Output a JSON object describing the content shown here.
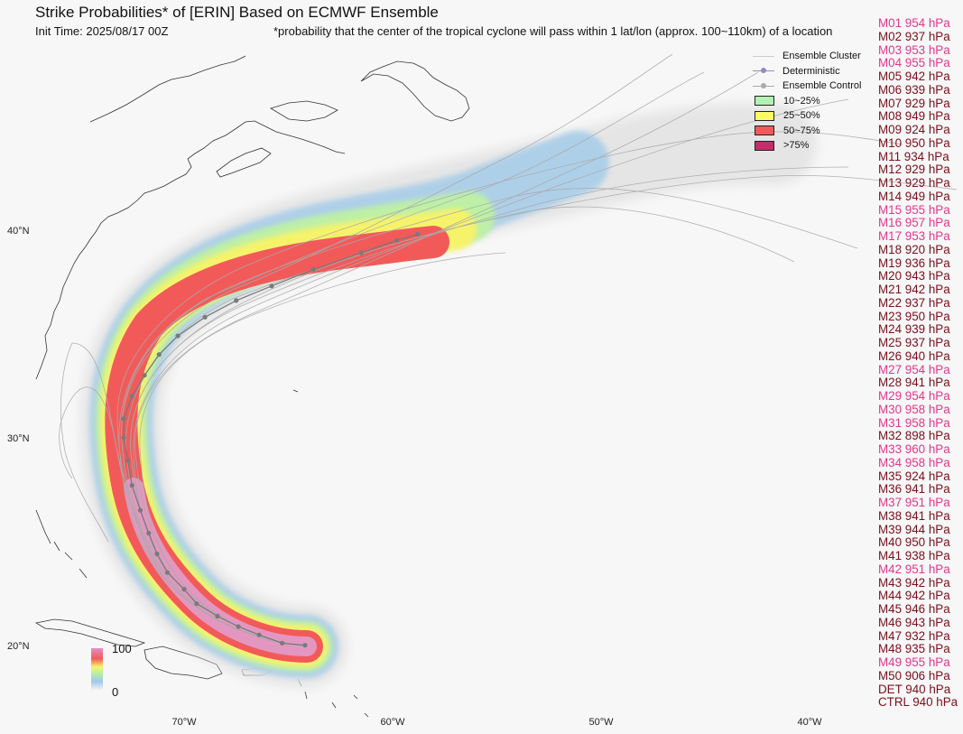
{
  "title": "Strike Probabilities* of [ERIN] Based on ECMWF Ensemble",
  "init_time": "Init Time: 2025/08/17 00Z",
  "footnote": "*probability that the center of the tropical cyclone will pass within 1 lat/lon (approx. 100~110km) of a location",
  "legend": {
    "items": [
      {
        "label": "Ensemble Cluster",
        "kind": "line",
        "color": "#cccccc"
      },
      {
        "label": "Deterministic",
        "kind": "line-dot",
        "color": "#8c8cc4"
      },
      {
        "label": "Ensemble Control",
        "kind": "line-dot",
        "color": "#aaaaaa"
      },
      {
        "label": "10~25%",
        "kind": "box",
        "color": "#b3f2b3"
      },
      {
        "label": "25~50%",
        "kind": "box",
        "color": "#fafa66"
      },
      {
        "label": "50~75%",
        "kind": "box",
        "color": "#f25a5a"
      },
      {
        "label": ">75%",
        "kind": "box",
        "color": "#c22f6b"
      }
    ]
  },
  "colorbar": {
    "max_label": "100",
    "min_label": "0"
  },
  "members": [
    {
      "label": "M01 954 hPa",
      "color": "#e0388a"
    },
    {
      "label": "M02 937 hPa",
      "color": "#7a0f1c"
    },
    {
      "label": "M03 953 hPa",
      "color": "#e0388a"
    },
    {
      "label": "M04 955 hPa",
      "color": "#e0388a"
    },
    {
      "label": "M05 942 hPa",
      "color": "#7a0f1c"
    },
    {
      "label": "M06 939 hPa",
      "color": "#7a0f1c"
    },
    {
      "label": "M07 929 hPa",
      "color": "#7a0f1c"
    },
    {
      "label": "M08 949 hPa",
      "color": "#7a0f1c"
    },
    {
      "label": "M09 924 hPa",
      "color": "#7a0f1c"
    },
    {
      "label": "M10 950 hPa",
      "color": "#7a0f1c"
    },
    {
      "label": "M11 934 hPa",
      "color": "#7a0f1c"
    },
    {
      "label": "M12 929 hPa",
      "color": "#7a0f1c"
    },
    {
      "label": "M13 929 hPa",
      "color": "#7a0f1c"
    },
    {
      "label": "M14 949 hPa",
      "color": "#7a0f1c"
    },
    {
      "label": "M15 955 hPa",
      "color": "#e0388a"
    },
    {
      "label": "M16 957 hPa",
      "color": "#e0388a"
    },
    {
      "label": "M17 953 hPa",
      "color": "#e0388a"
    },
    {
      "label": "M18 920 hPa",
      "color": "#7a0f1c"
    },
    {
      "label": "M19 936 hPa",
      "color": "#7a0f1c"
    },
    {
      "label": "M20 943 hPa",
      "color": "#7a0f1c"
    },
    {
      "label": "M21 942 hPa",
      "color": "#7a0f1c"
    },
    {
      "label": "M22 937 hPa",
      "color": "#7a0f1c"
    },
    {
      "label": "M23 950 hPa",
      "color": "#7a0f1c"
    },
    {
      "label": "M24 939 hPa",
      "color": "#7a0f1c"
    },
    {
      "label": "M25 937 hPa",
      "color": "#7a0f1c"
    },
    {
      "label": "M26 940 hPa",
      "color": "#7a0f1c"
    },
    {
      "label": "M27 954 hPa",
      "color": "#e0388a"
    },
    {
      "label": "M28 941 hPa",
      "color": "#7a0f1c"
    },
    {
      "label": "M29 954 hPa",
      "color": "#e0388a"
    },
    {
      "label": "M30 958 hPa",
      "color": "#e0388a"
    },
    {
      "label": "M31 958 hPa",
      "color": "#e0388a"
    },
    {
      "label": "M32 898 hPa",
      "color": "#7a0f1c"
    },
    {
      "label": "M33 960 hPa",
      "color": "#e0388a"
    },
    {
      "label": "M34 958 hPa",
      "color": "#e0388a"
    },
    {
      "label": "M35 924 hPa",
      "color": "#7a0f1c"
    },
    {
      "label": "M36 941 hPa",
      "color": "#7a0f1c"
    },
    {
      "label": "M37 951 hPa",
      "color": "#e0388a"
    },
    {
      "label": "M38 941 hPa",
      "color": "#7a0f1c"
    },
    {
      "label": "M39 944 hPa",
      "color": "#7a0f1c"
    },
    {
      "label": "M40 950 hPa",
      "color": "#7a0f1c"
    },
    {
      "label": "M41 938 hPa",
      "color": "#7a0f1c"
    },
    {
      "label": "M42 951 hPa",
      "color": "#e0388a"
    },
    {
      "label": "M43 942 hPa",
      "color": "#7a0f1c"
    },
    {
      "label": "M44 942 hPa",
      "color": "#7a0f1c"
    },
    {
      "label": "M45 946 hPa",
      "color": "#7a0f1c"
    },
    {
      "label": "M46 943 hPa",
      "color": "#7a0f1c"
    },
    {
      "label": "M47 932 hPa",
      "color": "#7a0f1c"
    },
    {
      "label": "M48 935 hPa",
      "color": "#7a0f1c"
    },
    {
      "label": "M49 955 hPa",
      "color": "#e0388a"
    },
    {
      "label": "M50 906 hPa",
      "color": "#7a0f1c"
    },
    {
      "label": "DET 940 hPa",
      "color": "#7a0f1c"
    },
    {
      "label": "CTRL 940 hPa",
      "color": "#7a0f1c"
    }
  ],
  "chart_data": {
    "type": "map",
    "axes": {
      "lon_range": [
        -77.5,
        -36.5
      ],
      "lat_range": [
        17.0,
        43.5
      ],
      "lon_ticks": [
        -70,
        -60,
        -50,
        -40
      ],
      "lon_tick_labels": [
        "70°W",
        "60°W",
        "50°W",
        "40°W"
      ],
      "lat_ticks": [
        20,
        30,
        40
      ],
      "lat_tick_labels": [
        "20°N",
        "30°N",
        "40°N"
      ]
    },
    "probability_levels": [
      10,
      25,
      50,
      75
    ],
    "deterministic_track": [
      [
        -64.2,
        20.1
      ],
      [
        -65.3,
        20.2
      ],
      [
        -66.4,
        20.6
      ],
      [
        -67.4,
        21.0
      ],
      [
        -68.4,
        21.5
      ],
      [
        -69.4,
        22.1
      ],
      [
        -70.0,
        22.8
      ],
      [
        -70.8,
        23.6
      ],
      [
        -71.3,
        24.5
      ],
      [
        -71.7,
        25.5
      ],
      [
        -72.1,
        26.6
      ],
      [
        -72.5,
        27.8
      ],
      [
        -72.7,
        29.0
      ],
      [
        -72.9,
        30.1
      ],
      [
        -72.9,
        31.0
      ],
      [
        -72.5,
        32.1
      ],
      [
        -71.9,
        33.1
      ],
      [
        -71.2,
        34.1
      ],
      [
        -70.3,
        35.0
      ],
      [
        -69.0,
        35.9
      ],
      [
        -67.5,
        36.7
      ],
      [
        -65.8,
        37.4
      ],
      [
        -63.8,
        38.2
      ],
      [
        -61.5,
        39.0
      ],
      [
        -59.8,
        39.6
      ],
      [
        -58.8,
        39.9
      ]
    ]
  }
}
